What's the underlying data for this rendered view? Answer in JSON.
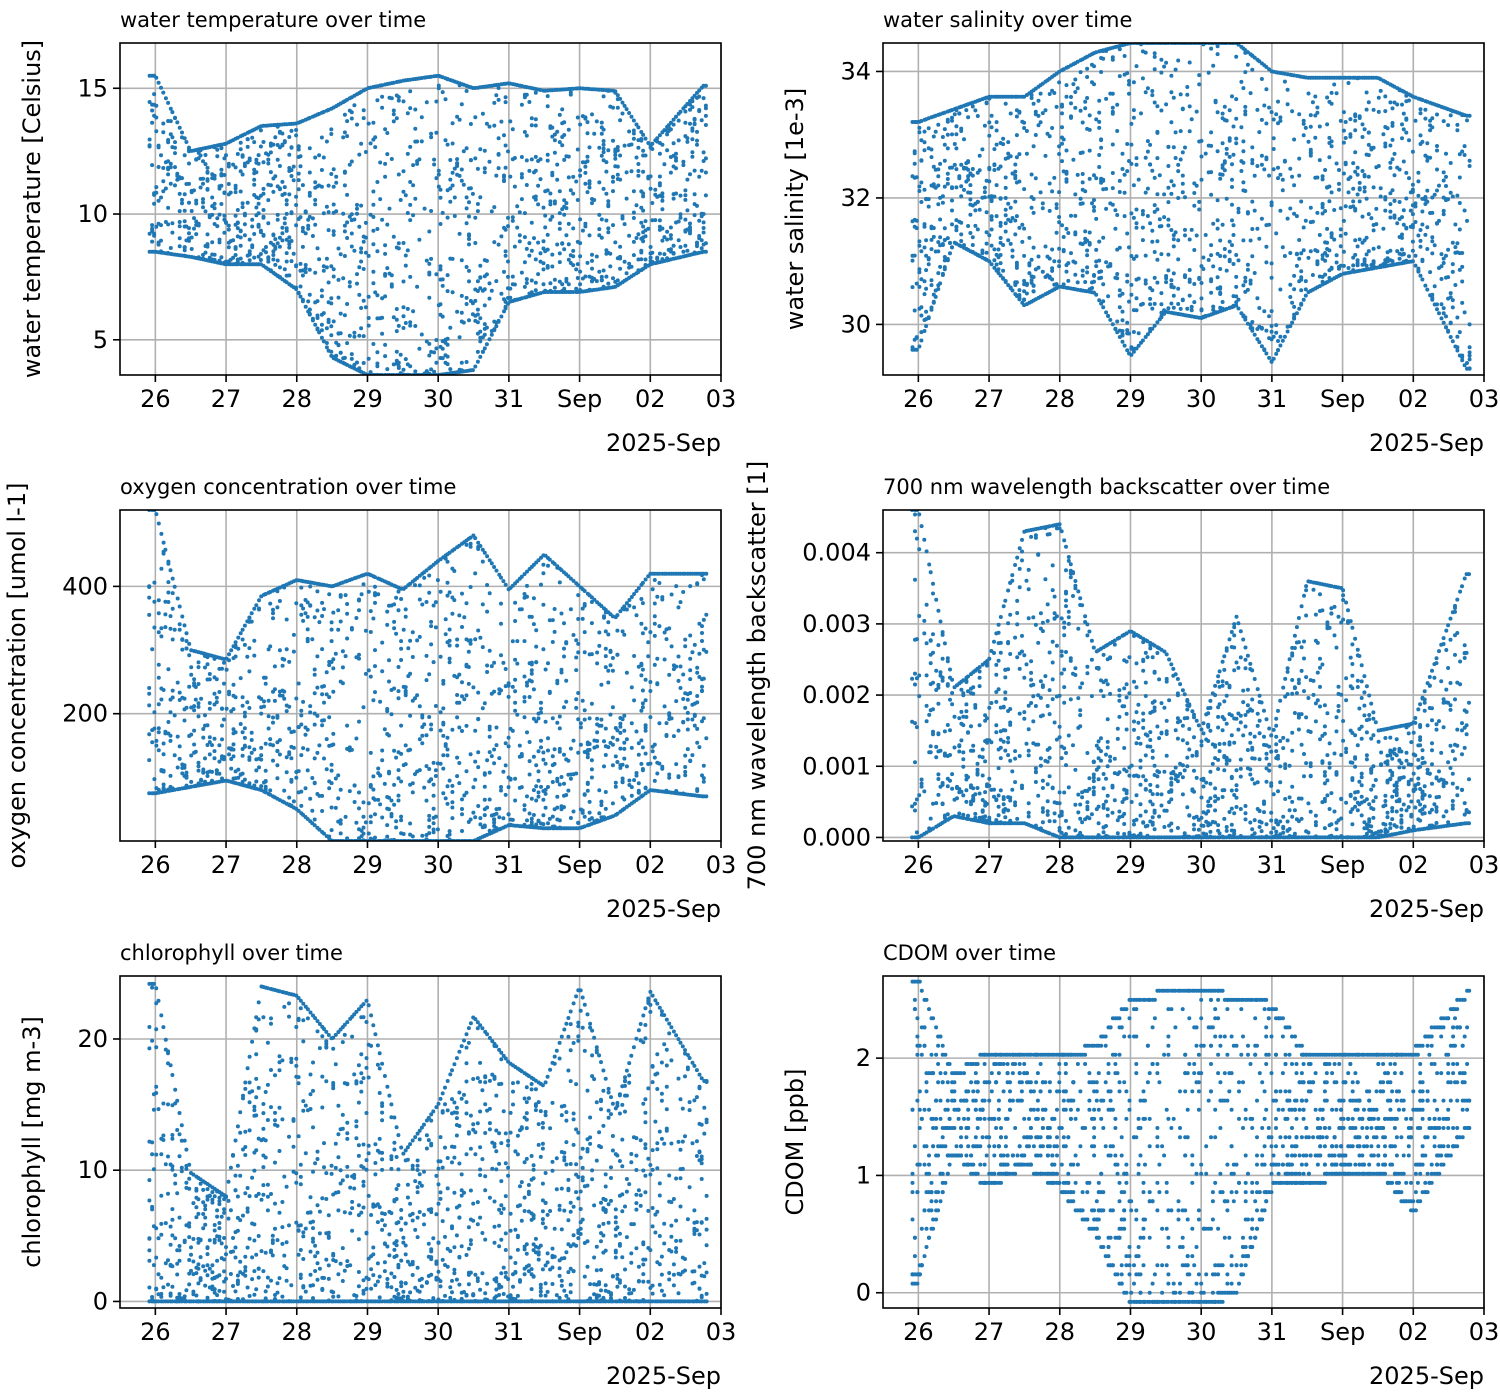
{
  "figure": {
    "point_color": "#1f77b4",
    "grid_color": "#b0b0b0"
  },
  "chart_data": [
    {
      "type": "scatter",
      "title": "water temperature over time",
      "xlabel": "",
      "ylabel": "water temperature [Celsius]",
      "x_tick_labels": [
        "26",
        "27",
        "28",
        "29",
        "30",
        "31",
        "Sep",
        "02",
        "03"
      ],
      "x_offset_label": "2025-Sep",
      "xlim": [
        "2025-08-25T12:00",
        "2025-09-03T00:00"
      ],
      "ylim": [
        3.6,
        16.8
      ],
      "y_ticks": [
        5,
        10,
        15
      ],
      "y_tick_labels": [
        "5",
        "10",
        "15"
      ],
      "grid": true,
      "series_summary": [
        {
          "date": "2025-08-26",
          "lower": 8.5,
          "upper": 15.5
        },
        {
          "date": "2025-08-26T12:00",
          "lower": 8.3,
          "upper": 12.5
        },
        {
          "date": "2025-08-27",
          "lower": 8.0,
          "upper": 12.8
        },
        {
          "date": "2025-08-27T12:00",
          "lower": 8.0,
          "upper": 13.5
        },
        {
          "date": "2025-08-28",
          "lower": 7.0,
          "upper": 13.6
        },
        {
          "date": "2025-08-28T12:00",
          "lower": 4.3,
          "upper": 14.2
        },
        {
          "date": "2025-08-29",
          "lower": 3.6,
          "upper": 15.0
        },
        {
          "date": "2025-08-29T12:00",
          "lower": 3.6,
          "upper": 15.3
        },
        {
          "date": "2025-08-30",
          "lower": 3.6,
          "upper": 15.5
        },
        {
          "date": "2025-08-30T12:00",
          "lower": 3.8,
          "upper": 15.0
        },
        {
          "date": "2025-08-31",
          "lower": 6.5,
          "upper": 15.2
        },
        {
          "date": "2025-08-31T12:00",
          "lower": 6.9,
          "upper": 14.9
        },
        {
          "date": "2025-09-01",
          "lower": 6.9,
          "upper": 15.0
        },
        {
          "date": "2025-09-01T12:00",
          "lower": 7.1,
          "upper": 14.9
        },
        {
          "date": "2025-09-02",
          "lower": 8.0,
          "upper": 12.7
        },
        {
          "date": "2025-09-02T18:00",
          "lower": 8.5,
          "upper": 15.1
        }
      ]
    },
    {
      "type": "scatter",
      "title": "water salinity over time",
      "xlabel": "",
      "ylabel": "water salinity [1e-3]",
      "x_tick_labels": [
        "26",
        "27",
        "28",
        "29",
        "30",
        "31",
        "Sep",
        "02",
        "03"
      ],
      "x_offset_label": "2025-Sep",
      "xlim": [
        "2025-08-25T12:00",
        "2025-09-03T00:00"
      ],
      "ylim": [
        29.2,
        34.45
      ],
      "y_ticks": [
        30,
        32,
        34
      ],
      "y_tick_labels": [
        "30",
        "32",
        "34"
      ],
      "grid": true,
      "series_summary": [
        {
          "date": "2025-08-26",
          "lower": 29.6,
          "upper": 33.2
        },
        {
          "date": "2025-08-26T12:00",
          "lower": 31.3,
          "upper": 33.4
        },
        {
          "date": "2025-08-27",
          "lower": 31.0,
          "upper": 33.6
        },
        {
          "date": "2025-08-27T12:00",
          "lower": 30.3,
          "upper": 33.6
        },
        {
          "date": "2025-08-28",
          "lower": 30.6,
          "upper": 34.0
        },
        {
          "date": "2025-08-28T12:00",
          "lower": 30.5,
          "upper": 34.3
        },
        {
          "date": "2025-08-29",
          "lower": 29.5,
          "upper": 34.45
        },
        {
          "date": "2025-08-29T12:00",
          "lower": 30.2,
          "upper": 34.45
        },
        {
          "date": "2025-08-30",
          "lower": 30.1,
          "upper": 34.45
        },
        {
          "date": "2025-08-30T12:00",
          "lower": 30.3,
          "upper": 34.45
        },
        {
          "date": "2025-08-31",
          "lower": 29.4,
          "upper": 34.0
        },
        {
          "date": "2025-08-31T12:00",
          "lower": 30.5,
          "upper": 33.9
        },
        {
          "date": "2025-09-01",
          "lower": 30.8,
          "upper": 33.9
        },
        {
          "date": "2025-09-01T12:00",
          "lower": 30.9,
          "upper": 33.9
        },
        {
          "date": "2025-09-02",
          "lower": 31.0,
          "upper": 33.6
        },
        {
          "date": "2025-09-02T18:00",
          "lower": 29.3,
          "upper": 33.3
        }
      ]
    },
    {
      "type": "scatter",
      "title": "oxygen concentration over time",
      "xlabel": "",
      "ylabel": "oxygen concentration [umol l-1]",
      "x_tick_labels": [
        "26",
        "27",
        "28",
        "29",
        "30",
        "31",
        "Sep",
        "02",
        "03"
      ],
      "x_offset_label": "2025-Sep",
      "xlim": [
        "2025-08-25T12:00",
        "2025-09-03T00:00"
      ],
      "ylim": [
        0,
        520
      ],
      "y_ticks": [
        200,
        400
      ],
      "y_tick_labels": [
        "200",
        "400"
      ],
      "grid": true,
      "series_summary": [
        {
          "date": "2025-08-26",
          "lower": 75,
          "upper": 520
        },
        {
          "date": "2025-08-26T12:00",
          "lower": 85,
          "upper": 300
        },
        {
          "date": "2025-08-27",
          "lower": 95,
          "upper": 285
        },
        {
          "date": "2025-08-27T12:00",
          "lower": 80,
          "upper": 385
        },
        {
          "date": "2025-08-28",
          "lower": 50,
          "upper": 410
        },
        {
          "date": "2025-08-28T12:00",
          "lower": 0,
          "upper": 400
        },
        {
          "date": "2025-08-29",
          "lower": 0,
          "upper": 420
        },
        {
          "date": "2025-08-29T12:00",
          "lower": 0,
          "upper": 395
        },
        {
          "date": "2025-08-30",
          "lower": 0,
          "upper": 440
        },
        {
          "date": "2025-08-30T12:00",
          "lower": 0,
          "upper": 480
        },
        {
          "date": "2025-08-31",
          "lower": 25,
          "upper": 395
        },
        {
          "date": "2025-08-31T12:00",
          "lower": 20,
          "upper": 450
        },
        {
          "date": "2025-09-01",
          "lower": 20,
          "upper": 400
        },
        {
          "date": "2025-09-01T12:00",
          "lower": 40,
          "upper": 350
        },
        {
          "date": "2025-09-02",
          "lower": 80,
          "upper": 420
        },
        {
          "date": "2025-09-02T18:00",
          "lower": 70,
          "upper": 420
        }
      ]
    },
    {
      "type": "scatter",
      "title": "700 nm wavelength backscatter over time",
      "xlabel": "",
      "ylabel": "700 nm wavelength backscatter [1]",
      "x_tick_labels": [
        "26",
        "27",
        "28",
        "29",
        "30",
        "31",
        "Sep",
        "02",
        "03"
      ],
      "x_offset_label": "2025-Sep",
      "xlim": [
        "2025-08-25T12:00",
        "2025-09-03T00:00"
      ],
      "ylim": [
        -5e-05,
        0.0046
      ],
      "y_ticks": [
        0,
        0.001,
        0.002,
        0.003,
        0.004
      ],
      "y_tick_labels": [
        "0.000",
        "0.001",
        "0.002",
        "0.003",
        "0.004"
      ],
      "grid": true,
      "series_summary": [
        {
          "date": "2025-08-26",
          "lower": 0.0,
          "upper": 0.0046
        },
        {
          "date": "2025-08-26T12:00",
          "lower": 0.0003,
          "upper": 0.0021
        },
        {
          "date": "2025-08-27",
          "lower": 0.0002,
          "upper": 0.0025
        },
        {
          "date": "2025-08-27T12:00",
          "lower": 0.0002,
          "upper": 0.0043
        },
        {
          "date": "2025-08-28",
          "lower": 0.0,
          "upper": 0.0044
        },
        {
          "date": "2025-08-28T12:00",
          "lower": 0.0,
          "upper": 0.0026
        },
        {
          "date": "2025-08-29",
          "lower": 0.0,
          "upper": 0.0029
        },
        {
          "date": "2025-08-29T12:00",
          "lower": 0.0,
          "upper": 0.0026
        },
        {
          "date": "2025-08-30",
          "lower": 0.0,
          "upper": 0.0015
        },
        {
          "date": "2025-08-30T12:00",
          "lower": 0.0,
          "upper": 0.0031
        },
        {
          "date": "2025-08-31",
          "lower": 0.0,
          "upper": 0.0014
        },
        {
          "date": "2025-08-31T12:00",
          "lower": 0.0,
          "upper": 0.0036
        },
        {
          "date": "2025-09-01",
          "lower": 0.0,
          "upper": 0.0035
        },
        {
          "date": "2025-09-01T12:00",
          "lower": 0.0,
          "upper": 0.0015
        },
        {
          "date": "2025-09-02",
          "lower": 0.0001,
          "upper": 0.0016
        },
        {
          "date": "2025-09-02T18:00",
          "lower": 0.0002,
          "upper": 0.0037
        }
      ]
    },
    {
      "type": "scatter",
      "title": "chlorophyll over time",
      "xlabel": "",
      "ylabel": "chlorophyll [mg m-3]",
      "x_tick_labels": [
        "26",
        "27",
        "28",
        "29",
        "30",
        "31",
        "Sep",
        "02",
        "03"
      ],
      "x_offset_label": "2025-Sep",
      "xlim": [
        "2025-08-25T12:00",
        "2025-09-03T00:00"
      ],
      "ylim": [
        -0.5,
        24.8
      ],
      "y_ticks": [
        0,
        10,
        20
      ],
      "y_tick_labels": [
        "0",
        "10",
        "20"
      ],
      "grid": true,
      "series_summary": [
        {
          "date": "2025-08-26",
          "lower": 0,
          "upper": 24.2
        },
        {
          "date": "2025-08-26T12:00",
          "lower": 0,
          "upper": 9.8
        },
        {
          "date": "2025-08-27",
          "lower": 0,
          "upper": 8.0
        },
        {
          "date": "2025-08-27T12:00",
          "lower": 0,
          "upper": 24.0
        },
        {
          "date": "2025-08-28",
          "lower": 0,
          "upper": 23.3
        },
        {
          "date": "2025-08-28T12:00",
          "lower": 0,
          "upper": 20.0
        },
        {
          "date": "2025-08-29",
          "lower": 0,
          "upper": 23.0
        },
        {
          "date": "2025-08-29T12:00",
          "lower": 0,
          "upper": 11.2
        },
        {
          "date": "2025-08-30",
          "lower": 0,
          "upper": 15.0
        },
        {
          "date": "2025-08-30T12:00",
          "lower": 0,
          "upper": 21.7
        },
        {
          "date": "2025-08-31",
          "lower": 0,
          "upper": 18.2
        },
        {
          "date": "2025-08-31T12:00",
          "lower": 0,
          "upper": 16.4
        },
        {
          "date": "2025-09-01",
          "lower": 0,
          "upper": 24.0
        },
        {
          "date": "2025-09-01T12:00",
          "lower": 0,
          "upper": 14.5
        },
        {
          "date": "2025-09-02",
          "lower": 0,
          "upper": 23.6
        },
        {
          "date": "2025-09-02T18:00",
          "lower": 0,
          "upper": 16.8
        }
      ]
    },
    {
      "type": "scatter",
      "title": "CDOM over time",
      "xlabel": "",
      "ylabel": "CDOM [ppb]",
      "x_tick_labels": [
        "26",
        "27",
        "28",
        "29",
        "30",
        "31",
        "Sep",
        "02",
        "03"
      ],
      "x_offset_label": "2025-Sep",
      "xlim": [
        "2025-08-25T12:00",
        "2025-09-03T00:00"
      ],
      "ylim": [
        -0.13,
        2.7
      ],
      "y_ticks": [
        0,
        1,
        2
      ],
      "y_tick_labels": [
        "0",
        "1",
        "2"
      ],
      "grid": true,
      "value_step": 0.078,
      "series_summary": [
        {
          "date": "2025-08-26",
          "lower": 0.1,
          "upper": 2.65
        },
        {
          "date": "2025-08-26T12:00",
          "lower": 1.2,
          "upper": 1.85
        },
        {
          "date": "2025-08-27",
          "lower": 0.9,
          "upper": 2.05
        },
        {
          "date": "2025-08-27T12:00",
          "lower": 1.1,
          "upper": 2.0
        },
        {
          "date": "2025-08-28",
          "lower": 0.9,
          "upper": 2.0
        },
        {
          "date": "2025-08-28T12:00",
          "lower": 0.5,
          "upper": 2.1
        },
        {
          "date": "2025-08-29",
          "lower": -0.1,
          "upper": 2.5
        },
        {
          "date": "2025-08-29T12:00",
          "lower": -0.1,
          "upper": 2.55
        },
        {
          "date": "2025-08-30",
          "lower": -0.1,
          "upper": 2.6
        },
        {
          "date": "2025-08-30T12:00",
          "lower": 0.0,
          "upper": 2.5
        },
        {
          "date": "2025-08-31",
          "lower": 0.9,
          "upper": 2.45
        },
        {
          "date": "2025-08-31T12:00",
          "lower": 0.95,
          "upper": 2.0
        },
        {
          "date": "2025-09-01",
          "lower": 1.0,
          "upper": 2.05
        },
        {
          "date": "2025-09-01T12:00",
          "lower": 1.05,
          "upper": 2.05
        },
        {
          "date": "2025-09-02",
          "lower": 0.7,
          "upper": 2.05
        },
        {
          "date": "2025-09-02T18:00",
          "lower": 1.4,
          "upper": 2.55
        }
      ]
    }
  ]
}
